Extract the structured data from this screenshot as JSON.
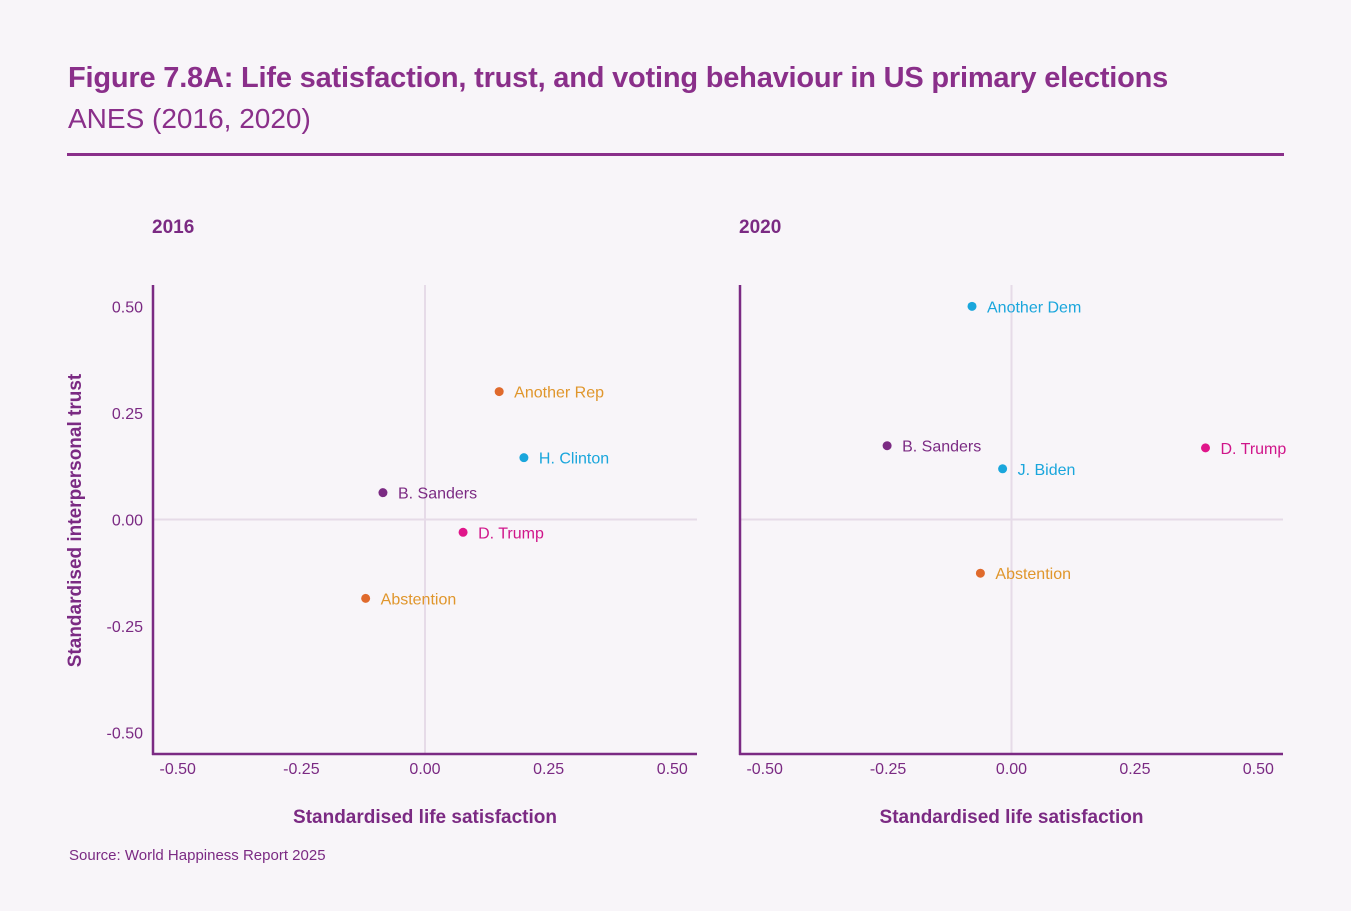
{
  "header": {
    "title": "Figure 7.8A: Life satisfaction, trust, and voting behaviour in US primary elections",
    "subtitle": "ANES (2016, 2020)"
  },
  "footer": {
    "source": "Source: World Happiness Report 2025"
  },
  "colors": {
    "purple": "#7b2a83",
    "blue": "#1aa6dc",
    "orange": "#e06a2c",
    "magenta": "#e0158a",
    "gridline": "#e6dbe8"
  },
  "chart_data": [
    {
      "type": "scatter",
      "title": "2016",
      "xlabel": "Standardised life satisfaction",
      "ylabel": "Standardised interpersonal trust",
      "xlim": [
        -0.55,
        0.55
      ],
      "ylim": [
        -0.55,
        0.55
      ],
      "xticks": [
        "-0.50",
        "-0.25",
        "0.00",
        "0.25",
        "0.50"
      ],
      "yticks": [
        "0.50",
        "0.25",
        "0.00",
        "-0.25",
        "-0.50"
      ],
      "grid": "zero-lines",
      "points": [
        {
          "label": "Another Rep",
          "x": 0.15,
          "y": 0.3,
          "color": "#e06a2c",
          "label_color": "#e0962c"
        },
        {
          "label": "H. Clinton",
          "x": 0.2,
          "y": 0.145,
          "color": "#1aa6dc",
          "label_color": "#1aa6dc"
        },
        {
          "label": "B. Sanders",
          "x": -0.085,
          "y": 0.063,
          "color": "#7b2a83",
          "label_color": "#7b2a83"
        },
        {
          "label": "D. Trump",
          "x": 0.077,
          "y": -0.03,
          "color": "#e0158a",
          "label_color": "#d0158a"
        },
        {
          "label": "Abstention",
          "x": -0.12,
          "y": -0.185,
          "color": "#e06a2c",
          "label_color": "#e0962c"
        }
      ]
    },
    {
      "type": "scatter",
      "title": "2020",
      "xlabel": "Standardised life satisfaction",
      "ylabel": "",
      "xlim": [
        -0.55,
        0.55
      ],
      "ylim": [
        -0.55,
        0.55
      ],
      "xticks": [
        "-0.50",
        "-0.25",
        "0.00",
        "0.25",
        "0.50"
      ],
      "yticks": [],
      "grid": "zero-lines",
      "points": [
        {
          "label": "Another Dem",
          "x": -0.08,
          "y": 0.5,
          "color": "#1aa6dc",
          "label_color": "#1aa6dc"
        },
        {
          "label": "B. Sanders",
          "x": -0.252,
          "y": 0.173,
          "color": "#7b2a83",
          "label_color": "#7b2a83"
        },
        {
          "label": "J. Biden",
          "x": -0.018,
          "y": 0.119,
          "color": "#1aa6dc",
          "label_color": "#1aa6dc"
        },
        {
          "label": "D. Trump",
          "x": 0.393,
          "y": 0.168,
          "color": "#e0158a",
          "label_color": "#d0158a"
        },
        {
          "label": "Abstention",
          "x": -0.063,
          "y": -0.126,
          "color": "#e06a2c",
          "label_color": "#e0962c"
        }
      ]
    }
  ]
}
